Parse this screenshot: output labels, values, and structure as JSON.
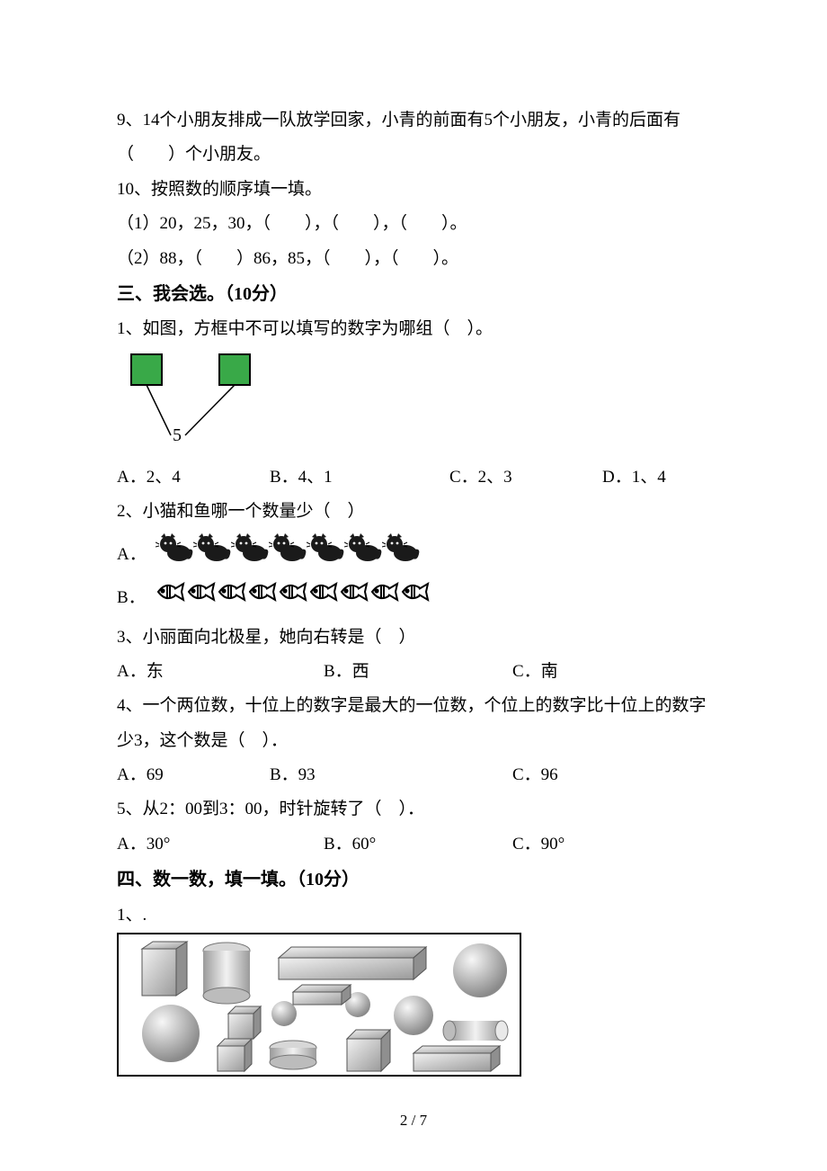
{
  "q9": "9、14个小朋友排成一队放学回家，小青的前面有5个小朋友，小青的后面有（　　）个小朋友。",
  "q10_head": "10、按照数的顺序填一填。",
  "q10_1": "（1）20，25，30，（　　），（　　），（　　）。",
  "q10_2": "（2）88，（　　）86，85，（　　），（　　）。",
  "sec3": "三、我会选。（10分）",
  "s3_q1": "1、如图，方框中不可以填写的数字为哪组（　）。",
  "s3_q1_img": {
    "box_fill": "#39a948",
    "box_stroke": "#000000",
    "line_stroke": "#000000",
    "label": "5"
  },
  "s3_q1_opts": {
    "a": "A．2、4",
    "b": "B．4、1",
    "c": "C．2、3",
    "d": "D．1、4"
  },
  "s3_q2": "2、小猫和鱼哪一个数量少（　）",
  "s3_q2_a_label": "A．",
  "s3_q2_b_label": "B．",
  "s3_q2_cats": 7,
  "s3_q2_fish": 9,
  "s3_q3": "3、小丽面向北极星，她向右转是（　）",
  "s3_q3_opts": {
    "a": "A．东",
    "b": "B．西",
    "c": "C．南"
  },
  "s3_q4_l1": "4、一个两位数，十位上的数字是最大的一位数，个位上的数字比十位上的数字",
  "s3_q4_l2": "少3，这个数是（　）．",
  "s3_q4_opts": {
    "a": "A．69",
    "b": "B．93",
    "c": "C．96"
  },
  "s3_q5": "5、从2：00到3：00，时针旋转了（　）．",
  "s3_q5_opts": {
    "a": "A．30°",
    "b": "B．60°",
    "c": "C．90°"
  },
  "sec4": "四、数一数，填一填。（10分）",
  "s4_q1": "1、.",
  "footer": "2 / 7",
  "shapes_img": {
    "border": "#000000",
    "shade": "#9a9a9a",
    "light": "#e6e6e6"
  }
}
